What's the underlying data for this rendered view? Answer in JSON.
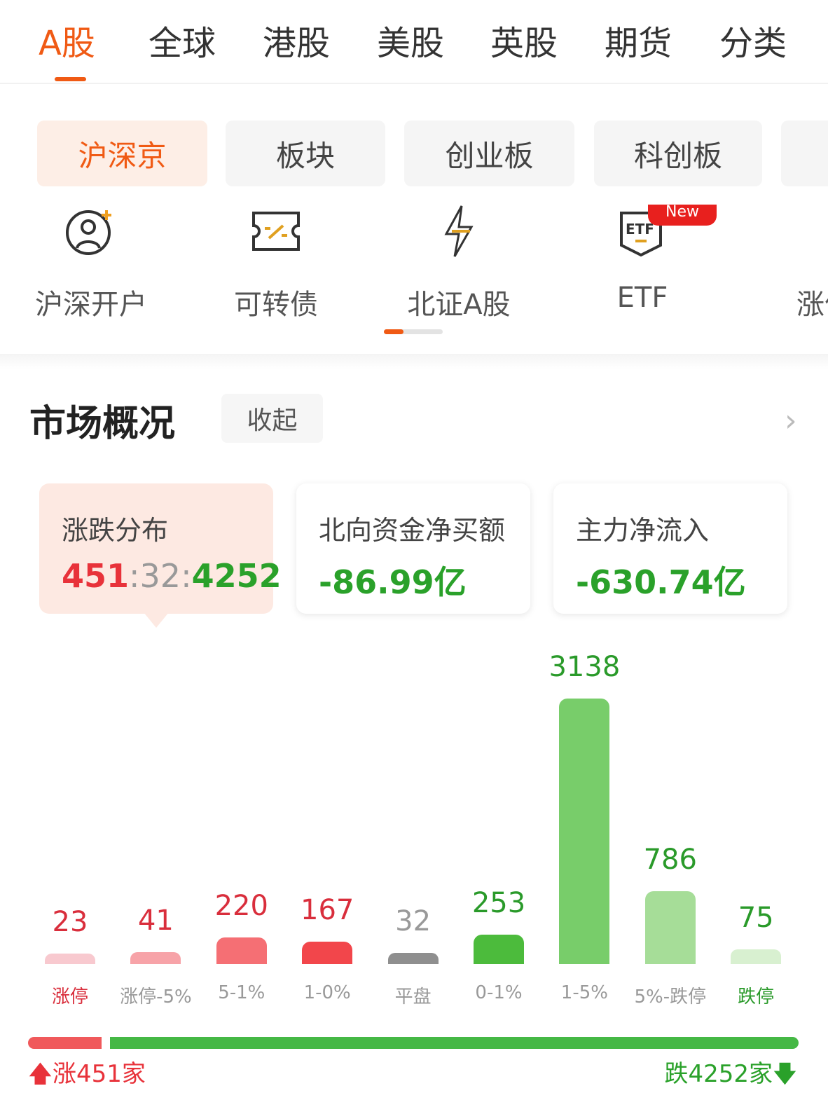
{
  "top_tabs": [
    "A股",
    "全球",
    "港股",
    "美股",
    "英股",
    "期货",
    "分类"
  ],
  "active_top_tab": "A股",
  "sub_tabs": [
    "沪深京",
    "板块",
    "创业板",
    "科创板"
  ],
  "active_sub_tab": "沪深京",
  "shortcuts": [
    {
      "label": "沪深开户",
      "icon": "user-add-icon"
    },
    {
      "label": "可转债",
      "icon": "ticket-icon"
    },
    {
      "label": "北证A股",
      "icon": "lightning-icon"
    },
    {
      "label": "ETF",
      "icon": "etf-shield-icon",
      "badge": "New"
    },
    {
      "label": "涨停",
      "icon": "limit-up-icon"
    }
  ],
  "market": {
    "title": "市场概况",
    "collapse_label": "收起",
    "cards": [
      {
        "title": "涨跌分布",
        "up": "451",
        "flat": "32",
        "down": "4252",
        "sep": ":"
      },
      {
        "title": "北向资金净买额",
        "value": "-86.99亿"
      },
      {
        "title": "主力净流入",
        "value": "-630.74亿"
      }
    ]
  },
  "colors": {
    "accent": "#f05a14",
    "up": "#e8323a",
    "down": "#2aa12a",
    "flat": "#999999"
  },
  "chart_data": {
    "type": "bar",
    "categories": [
      "涨停",
      "涨停-5%",
      "5-1%",
      "1-0%",
      "平盘",
      "0-1%",
      "1-5%",
      "5%-跌停",
      "跌停"
    ],
    "values": [
      23,
      41,
      220,
      167,
      32,
      253,
      3138,
      786,
      75
    ],
    "bar_colors": [
      "#f8c9cf",
      "#f7a3a8",
      "#f56f74",
      "#f2464b",
      "#8f8f8f",
      "#4cbb3c",
      "#78cd6a",
      "#a6dd98",
      "#d8f0d0"
    ],
    "value_colors": [
      "#d92e3c",
      "#d92e3c",
      "#d92e3c",
      "#d92e3c",
      "#999999",
      "#2a9a2a",
      "#2a9a2a",
      "#2a9a2a",
      "#2a9a2a"
    ]
  },
  "summary": {
    "up_label": "涨451家",
    "down_label": "跌4252家",
    "up": 451,
    "down": 4252
  }
}
